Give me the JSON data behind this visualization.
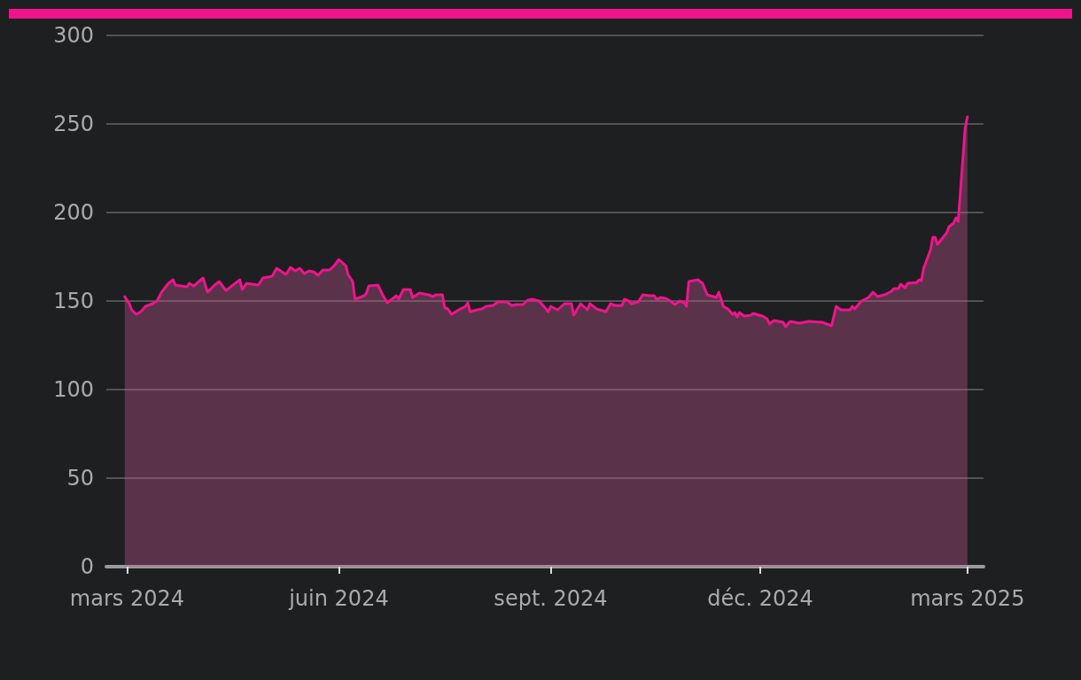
{
  "chart_data": {
    "type": "area",
    "x": [
      "2024-02-29",
      "2024-03-02",
      "2024-03-03",
      "2024-03-05",
      "2024-03-07",
      "2024-03-09",
      "2024-03-12",
      "2024-03-14",
      "2024-03-16",
      "2024-03-19",
      "2024-03-21",
      "2024-03-22",
      "2024-03-27",
      "2024-03-28",
      "2024-03-30",
      "2024-04-03",
      "2024-04-05",
      "2024-04-08",
      "2024-04-10",
      "2024-04-13",
      "2024-04-16",
      "2024-04-19",
      "2024-04-20",
      "2024-04-22",
      "2024-04-27",
      "2024-04-29",
      "2024-05-03",
      "2024-05-05",
      "2024-05-09",
      "2024-05-11",
      "2024-05-13",
      "2024-05-15",
      "2024-05-17",
      "2024-05-19",
      "2024-05-21",
      "2024-05-23",
      "2024-05-25",
      "2024-05-28",
      "2024-05-30",
      "2024-06-01",
      "2024-06-04",
      "2024-06-05",
      "2024-06-07",
      "2024-06-08",
      "2024-06-12",
      "2024-06-13",
      "2024-06-14",
      "2024-06-18",
      "2024-06-20",
      "2024-06-22",
      "2024-06-26",
      "2024-06-27",
      "2024-06-29",
      "2024-07-02",
      "2024-07-03",
      "2024-07-06",
      "2024-07-10",
      "2024-07-12",
      "2024-07-13",
      "2024-07-16",
      "2024-07-17",
      "2024-07-18",
      "2024-07-20",
      "2024-07-23",
      "2024-07-26",
      "2024-07-27",
      "2024-07-28",
      "2024-07-31",
      "2024-08-02",
      "2024-08-04",
      "2024-08-07",
      "2024-08-09",
      "2024-08-13",
      "2024-08-15",
      "2024-08-17",
      "2024-08-20",
      "2024-08-22",
      "2024-08-24",
      "2024-08-27",
      "2024-08-31",
      "2024-09-01",
      "2024-09-04",
      "2024-09-07",
      "2024-09-10",
      "2024-09-11",
      "2024-09-14",
      "2024-09-17",
      "2024-09-18",
      "2024-09-21",
      "2024-09-25",
      "2024-09-27",
      "2024-09-29",
      "2024-10-02",
      "2024-10-03",
      "2024-10-05",
      "2024-10-06",
      "2024-10-09",
      "2024-10-11",
      "2024-10-14",
      "2024-10-16",
      "2024-10-17",
      "2024-10-19",
      "2024-10-21",
      "2024-10-23",
      "2024-10-25",
      "2024-10-27",
      "2024-10-29",
      "2024-10-30",
      "2024-10-31",
      "2024-11-04",
      "2024-11-06",
      "2024-11-08",
      "2024-11-12",
      "2024-11-13",
      "2024-11-15",
      "2024-11-17",
      "2024-11-19",
      "2024-11-20",
      "2024-11-21",
      "2024-11-22",
      "2024-11-24",
      "2024-11-27",
      "2024-11-28",
      "2024-12-02",
      "2024-12-04",
      "2024-12-05",
      "2024-12-07",
      "2024-12-11",
      "2024-12-12",
      "2024-12-14",
      "2024-12-18",
      "2024-12-22",
      "2024-12-28",
      "2025-01-01",
      "2025-01-03",
      "2025-01-05",
      "2025-01-09",
      "2025-01-10",
      "2025-01-11",
      "2025-01-14",
      "2025-01-17",
      "2025-01-19",
      "2025-01-21",
      "2025-01-24",
      "2025-01-27",
      "2025-01-28",
      "2025-01-30",
      "2025-01-31",
      "2025-02-02",
      "2025-02-03",
      "2025-02-07",
      "2025-02-08",
      "2025-02-09",
      "2025-02-10",
      "2025-02-13",
      "2025-02-14",
      "2025-02-15",
      "2025-02-16",
      "2025-02-20",
      "2025-02-21",
      "2025-02-23",
      "2025-02-24",
      "2025-02-25",
      "2025-02-28",
      "2025-03-01"
    ],
    "series": [
      {
        "color": "#f0148c",
        "values": [
          152.5,
          148.5,
          145,
          142.5,
          144,
          147,
          148.5,
          150,
          155,
          160,
          162,
          159,
          158,
          160,
          158.5,
          163,
          155,
          159,
          161,
          156,
          159,
          162,
          156.5,
          160,
          159,
          163,
          164,
          168.5,
          165,
          169,
          167,
          168.5,
          165.5,
          167,
          166.5,
          164.5,
          167.5,
          167.5,
          170,
          173.5,
          170,
          165,
          161,
          151,
          153,
          154.5,
          158.5,
          159,
          153.5,
          149,
          153,
          151,
          156.5,
          156.5,
          152,
          154.5,
          153.5,
          152.5,
          153.5,
          153.5,
          146,
          146,
          142.5,
          145,
          147,
          149,
          144,
          145,
          145.5,
          147,
          147.5,
          149.5,
          149.5,
          147.5,
          148,
          148,
          150.5,
          151,
          150,
          144,
          147,
          145,
          148.5,
          148.5,
          142,
          148.5,
          145,
          148.5,
          145.5,
          144,
          148.5,
          147.5,
          147.5,
          151,
          150,
          148.5,
          149.5,
          153.5,
          153,
          153,
          151,
          152,
          151.5,
          150,
          148,
          150,
          149,
          147,
          161,
          162,
          160,
          153.5,
          152,
          155,
          147,
          145.5,
          142.5,
          143.5,
          141,
          143.5,
          141.5,
          142,
          143,
          141.5,
          140,
          137,
          139,
          138,
          135.5,
          138.5,
          137.5,
          138.5,
          138,
          136,
          147,
          145,
          145,
          147,
          145.5,
          150,
          152,
          155,
          152.5,
          153.5,
          155.5,
          157,
          157,
          159.5,
          157.5,
          160,
          160.5,
          162,
          161.5,
          168.5,
          179,
          186,
          186,
          182,
          188.5,
          192,
          194,
          197,
          195,
          247.5,
          254
        ]
      }
    ],
    "xlim": [
      "2024-02-21",
      "2025-03-08"
    ],
    "xticks": [
      {
        "value": "2024-03-01",
        "label": "mars 2024"
      },
      {
        "value": "2024-06-01",
        "label": "juin 2024"
      },
      {
        "value": "2024-09-01",
        "label": "sept. 2024"
      },
      {
        "value": "2024-12-01",
        "label": "déc. 2024"
      },
      {
        "value": "2025-03-01",
        "label": "mars 2025"
      }
    ],
    "ylim": [
      0,
      300
    ],
    "yticks": [
      0,
      50,
      100,
      150,
      200,
      250,
      300
    ],
    "grid": "y",
    "marker": "none",
    "line_style": "solid"
  }
}
